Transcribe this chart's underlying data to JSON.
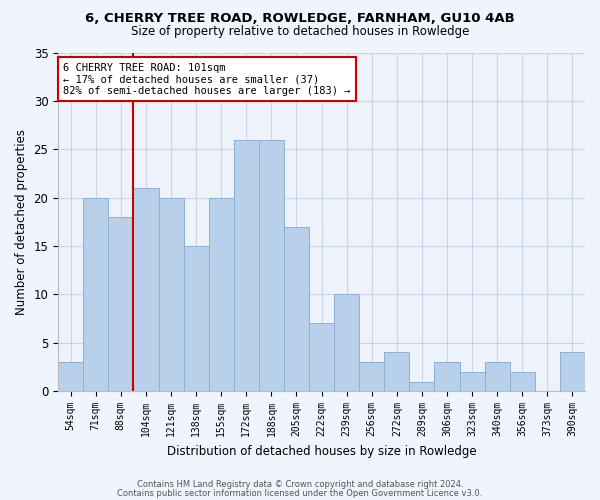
{
  "title1": "6, CHERRY TREE ROAD, ROWLEDGE, FARNHAM, GU10 4AB",
  "title2": "Size of property relative to detached houses in Rowledge",
  "xlabel": "Distribution of detached houses by size in Rowledge",
  "ylabel": "Number of detached properties",
  "categories": [
    "54sqm",
    "71sqm",
    "88sqm",
    "104sqm",
    "121sqm",
    "138sqm",
    "155sqm",
    "172sqm",
    "188sqm",
    "205sqm",
    "222sqm",
    "239sqm",
    "256sqm",
    "272sqm",
    "289sqm",
    "306sqm",
    "323sqm",
    "340sqm",
    "356sqm",
    "373sqm",
    "390sqm"
  ],
  "values": [
    3,
    20,
    18,
    21,
    20,
    15,
    20,
    26,
    26,
    17,
    7,
    10,
    3,
    4,
    1,
    3,
    2,
    3,
    2,
    0,
    4
  ],
  "bar_color": "#b8d0ea",
  "bar_edge_color": "#8ab0d8",
  "vline_color": "#cc0000",
  "annotation_line1": "6 CHERRY TREE ROAD: 101sqm",
  "annotation_line2": "← 17% of detached houses are smaller (37)",
  "annotation_line3": "82% of semi-detached houses are larger (183) →",
  "annotation_box_color": "#ffffff",
  "annotation_box_edge_color": "#cc0000",
  "ylim": [
    0,
    35
  ],
  "yticks": [
    0,
    5,
    10,
    15,
    20,
    25,
    30,
    35
  ],
  "grid_color": "#c8d4e8",
  "background_color": "#eef2fa",
  "fig_color": "#f0f4fc",
  "footer1": "Contains HM Land Registry data © Crown copyright and database right 2024.",
  "footer2": "Contains public sector information licensed under the Open Government Licence v3.0."
}
